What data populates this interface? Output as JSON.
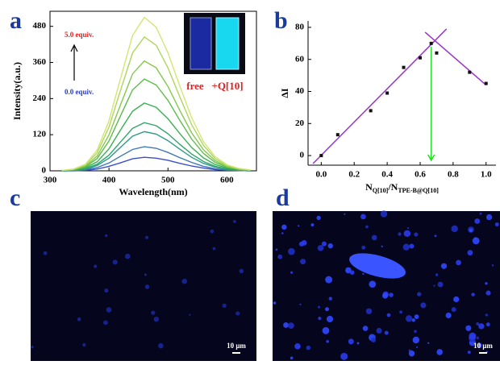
{
  "chart_data": [
    {
      "type": "line",
      "panel_label": "a",
      "x_label": "Wavelength(nm)",
      "y_label": "Intensity(a.u.)",
      "x": [
        320,
        340,
        360,
        380,
        400,
        420,
        440,
        460,
        480,
        500,
        520,
        540,
        560,
        580,
        600,
        620,
        640
      ],
      "series": [
        {
          "color": "#3b4fc9",
          "values": [
            0,
            0,
            2,
            6,
            15,
            27,
            40,
            45,
            42,
            35,
            25,
            16,
            9,
            4,
            2,
            1,
            0
          ]
        },
        {
          "color": "#3f78b8",
          "values": [
            0,
            1,
            4,
            11,
            26,
            49,
            71,
            80,
            75,
            61,
            44,
            28,
            15,
            7,
            3,
            1,
            0
          ]
        },
        {
          "color": "#2f9a8a",
          "values": [
            0,
            1,
            6,
            18,
            42,
            79,
            115,
            130,
            122,
            100,
            72,
            45,
            25,
            12,
            5,
            2,
            1
          ]
        },
        {
          "color": "#2ea66a",
          "values": [
            0,
            2,
            7,
            22,
            52,
            97,
            141,
            160,
            150,
            123,
            88,
            56,
            31,
            15,
            6,
            2,
            1
          ]
        },
        {
          "color": "#38b050",
          "values": [
            0,
            2,
            10,
            30,
            73,
            137,
            198,
            225,
            211,
            173,
            124,
            78,
            43,
            21,
            9,
            3,
            1
          ]
        },
        {
          "color": "#5cbc4a",
          "values": [
            1,
            3,
            13,
            41,
            99,
            185,
            269,
            305,
            285,
            234,
            168,
            106,
            58,
            28,
            12,
            5,
            2
          ]
        },
        {
          "color": "#86c84e",
          "values": [
            1,
            4,
            16,
            49,
            119,
            222,
            322,
            365,
            342,
            280,
            201,
            127,
            70,
            34,
            14,
            5,
            2
          ]
        },
        {
          "color": "#aed65a",
          "values": [
            1,
            5,
            20,
            60,
            145,
            270,
            392,
            445,
            417,
            342,
            246,
            154,
            85,
            41,
            17,
            7,
            2
          ]
        },
        {
          "color": "#d2e672",
          "values": [
            1,
            6,
            22,
            69,
            166,
            310,
            450,
            510,
            477,
            392,
            282,
            177,
            97,
            47,
            20,
            8,
            3
          ]
        }
      ],
      "xlim": [
        300,
        650
      ],
      "xticks": [
        300,
        400,
        500,
        600
      ],
      "ylim": [
        0,
        530
      ],
      "yticks": [
        0,
        120,
        240,
        360,
        480
      ],
      "annotations": [
        "5.0 equiv.",
        "0.0 equiv."
      ],
      "inset_labels": [
        "free",
        "+Q[10]"
      ]
    },
    {
      "type": "scatter",
      "panel_label": "b",
      "x_label_parts": [
        "N",
        "Q[10]",
        "/N",
        "TPE-B@Q[10]"
      ],
      "y_label": "ΔI",
      "x": [
        0,
        0.1,
        0.3,
        0.4,
        0.5,
        0.6,
        0.667,
        0.7,
        0.9,
        1.0
      ],
      "values": [
        0,
        13,
        28,
        39,
        55,
        61,
        70,
        64,
        52,
        45
      ],
      "color": "#111111",
      "fit_lines": [
        {
          "x": [
            -0.05,
            0.76
          ],
          "y": [
            -5,
            79
          ],
          "color": "#9933cc"
        },
        {
          "x": [
            0.63,
            1.0
          ],
          "y": [
            77,
            44
          ],
          "color": "#9933cc"
        }
      ],
      "arrow": {
        "x": 0.667,
        "y": [
          68,
          -3
        ],
        "color": "#22dd22"
      },
      "xlim": [
        -0.08,
        1.06
      ],
      "xticks": [
        {
          "value": 0,
          "label": "0.0"
        },
        {
          "value": 0.2,
          "label": "0.2"
        },
        {
          "value": 0.4,
          "label": "0.4"
        },
        {
          "value": 0.6,
          "label": "0.6"
        },
        {
          "value": 0.8,
          "label": "0.8"
        },
        {
          "value": 1.0,
          "label": "1.0"
        }
      ],
      "ylim": [
        -6,
        84
      ],
      "yticks": [
        0,
        20,
        40,
        60,
        80
      ]
    }
  ],
  "images": [
    {
      "panel_label": "c",
      "scale_bar": "10 μm"
    },
    {
      "panel_label": "d",
      "scale_bar": "10 μm"
    }
  ]
}
